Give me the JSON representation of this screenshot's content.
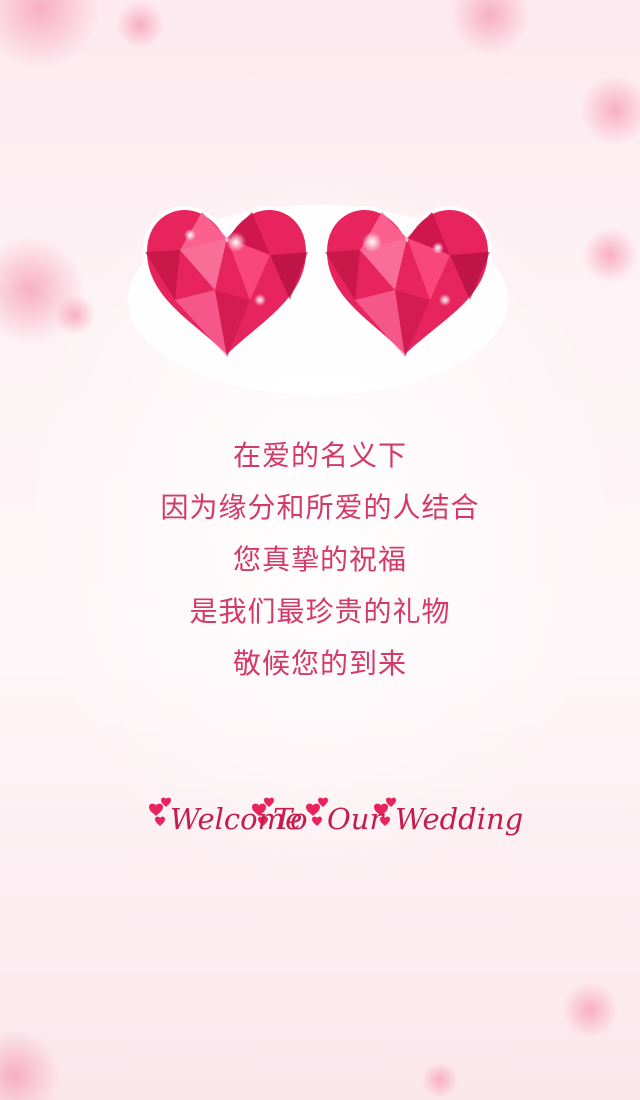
{
  "theme": {
    "text_color": "#d33a68",
    "heart_color": "#e8245f",
    "heart_light": "#ff7aa6",
    "heart_dark": "#b5103e",
    "bg_color": "#fdf0f4",
    "welcome_color": "#c41d4c"
  },
  "verse": {
    "lines": [
      "在爱的名义下",
      "因为缘分和所爱的人结合",
      "您真挚的祝福",
      "是我们最珍贵的礼物",
      "敬候您的到来"
    ]
  },
  "welcome": {
    "words": [
      "Welcome",
      "To",
      "Our",
      "Wedding"
    ]
  }
}
